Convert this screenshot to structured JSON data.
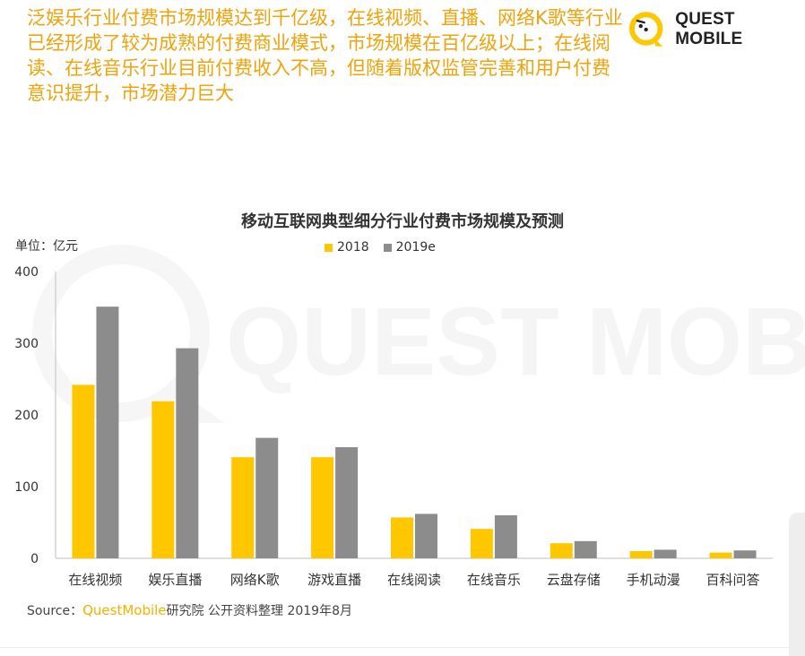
{
  "headline": "泛娱乐行业付费市场规模达到千亿级，在线视频、直播、网络K歌等行业已经形成了较为成熟的付费商业模式，市场规模在百亿级以上；在线阅读、在线音乐行业目前付费收入不高，但随着版权监管完善和用户付费意识提升，市场潜力巨大",
  "logo": {
    "text": "QUEST MOBILE",
    "watermark": "QUEST MOBILE"
  },
  "source": {
    "label": "Source：",
    "brand": "QuestMobile",
    "rest": "研究院 公开资料整理 2019年8月"
  },
  "colors": {
    "s2018": "#ffc700",
    "s2019e": "#8c8c8c",
    "brand": "#ffc700"
  },
  "chart_data": {
    "type": "bar",
    "title": "移动互联网典型细分行业付费市场规模及预测",
    "unit": "单位：亿元",
    "categories": [
      "在线视频",
      "娱乐直播",
      "网络K歌",
      "游戏直播",
      "在线阅读",
      "在线音乐",
      "云盘存储",
      "手机动漫",
      "百科问答"
    ],
    "series": [
      {
        "name": "2018",
        "values": [
          242,
          219,
          141,
          141,
          57,
          41,
          21,
          10,
          8
        ]
      },
      {
        "name": "2019e",
        "values": [
          351,
          293,
          168,
          155,
          62,
          60,
          24,
          12,
          11
        ]
      }
    ],
    "ylim": [
      0,
      400
    ],
    "yticks": [
      "0",
      "100",
      "200",
      "300",
      "400"
    ],
    "legend": "top-center",
    "grid": false
  }
}
